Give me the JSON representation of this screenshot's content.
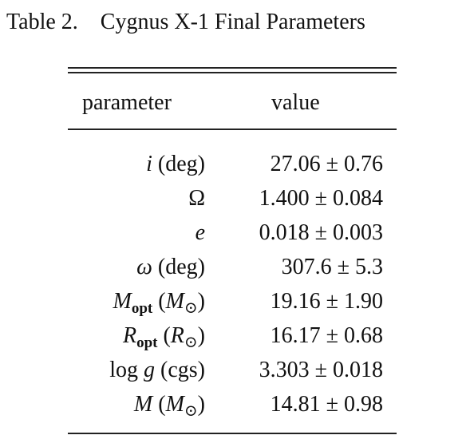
{
  "caption": {
    "label": "Table 2.",
    "title": "Cygnus X-1 Final Parameters"
  },
  "table": {
    "header": [
      "parameter",
      "value"
    ],
    "rows": [
      {
        "parameter": [
          "i",
          "(deg)"
        ],
        "value": "27.06 ± 0.76"
      },
      {
        "parameter": [
          "Ω"
        ],
        "value": "1.400 ± 0.084"
      },
      {
        "parameter": [
          "e"
        ],
        "value": "0.018 ± 0.003"
      },
      {
        "parameter": [
          "ω",
          "(deg)"
        ],
        "value": "307.6 ± 5.3"
      },
      {
        "parameter": [
          "M",
          "opt",
          "(",
          "M",
          "⊙",
          ")"
        ],
        "value": "19.16 ± 1.90"
      },
      {
        "parameter": [
          "R",
          "opt",
          "(",
          "R",
          "⊙",
          ")"
        ],
        "value": "16.17 ± 0.68"
      },
      {
        "parameter": [
          "log",
          "g",
          "(cgs)"
        ],
        "value": "3.303 ± 0.018"
      },
      {
        "parameter": [
          "M",
          "(",
          "M",
          "⊙",
          ")"
        ],
        "value": "14.81 ± 0.98"
      }
    ]
  }
}
